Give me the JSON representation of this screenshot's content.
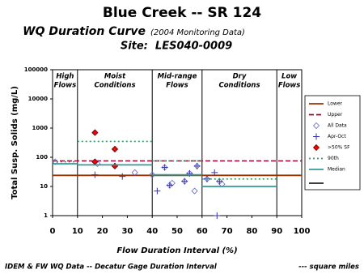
{
  "chart_data": {
    "type": "duration",
    "title": "Blue Creek -- SR 124",
    "subtitle": "WQ Duration Curve",
    "subtitle_note": "(2004 Monitoring Data)",
    "site": "Site:  LES040-0009",
    "y_label": "Total Susp. Solids (mg/L)",
    "x_label": "Flow Duration Interval (%)",
    "footer_left": "IDEM & FW WQ Data -- Decatur Gage Duration Interval",
    "footer_right": "--- square miles",
    "xlim": [
      0,
      100
    ],
    "xticks": [
      0,
      10,
      20,
      30,
      40,
      50,
      60,
      70,
      80,
      90,
      100
    ],
    "ylim": [
      1,
      100000
    ],
    "yticks": [
      1,
      10,
      100,
      1000,
      10000,
      100000
    ],
    "log_y": true,
    "legend": "right",
    "regions": [
      {
        "label": [
          "High",
          "Flows"
        ],
        "from": 0,
        "to": 10
      },
      {
        "label": [
          "Moist",
          "Conditions"
        ],
        "from": 10,
        "to": 40
      },
      {
        "label": [
          "Mid-range",
          "Flows"
        ],
        "from": 40,
        "to": 60
      },
      {
        "label": [
          "Dry",
          "Conditions"
        ],
        "from": 60,
        "to": 90
      },
      {
        "label": [
          "Low",
          "Flows"
        ],
        "from": 90,
        "to": 100
      }
    ],
    "series": [
      {
        "name": "Lower",
        "marker": "solid",
        "color": "#993300",
        "x": [
          0,
          100
        ],
        "values": [
          24,
          24
        ]
      },
      {
        "name": "Upper",
        "marker": "dashed",
        "color": "#990033",
        "x": [
          0,
          100
        ],
        "values": [
          75,
          75
        ]
      },
      {
        "name": "All Data",
        "marker": "diamond",
        "color": "#6666cc",
        "x": [
          1,
          17,
          17,
          18,
          25,
          25,
          33,
          40,
          45,
          47,
          48,
          53,
          55,
          57,
          58,
          62,
          67,
          68
        ],
        "values": [
          70,
          700,
          70,
          60,
          190,
          50,
          30,
          25,
          45,
          11,
          13,
          15,
          28,
          7,
          50,
          18,
          15,
          12
        ]
      },
      {
        "name": "Apr-Oct",
        "marker": "plus",
        "color": "#3333aa",
        "x": [
          17,
          28,
          42,
          45,
          47,
          53,
          55,
          58,
          62,
          65,
          66,
          67
        ],
        "values": [
          25,
          22,
          7,
          45,
          11,
          15,
          28,
          50,
          18,
          30,
          1,
          15
        ]
      },
      {
        "name": ">50% SF",
        "marker": "filled-diamond",
        "color": "#ff0000",
        "x": [
          17,
          17,
          25,
          25
        ],
        "values": [
          700,
          70,
          190,
          50
        ]
      },
      {
        "name": "90th",
        "marker": "dotted",
        "color": "#339966",
        "x": [
          0,
          10,
          10,
          10,
          40,
          40,
          40,
          60,
          60,
          60,
          90
        ],
        "values": [
          70,
          70,
          null,
          350,
          350,
          null,
          75,
          75,
          null,
          18,
          18
        ]
      },
      {
        "name": "Median",
        "marker": "solid",
        "color": "#339999",
        "x": [
          0,
          10,
          10,
          10,
          40,
          40,
          40,
          60,
          60,
          60,
          90
        ],
        "values": [
          60,
          60,
          null,
          55,
          55,
          null,
          25,
          25,
          null,
          10,
          10
        ]
      }
    ]
  }
}
